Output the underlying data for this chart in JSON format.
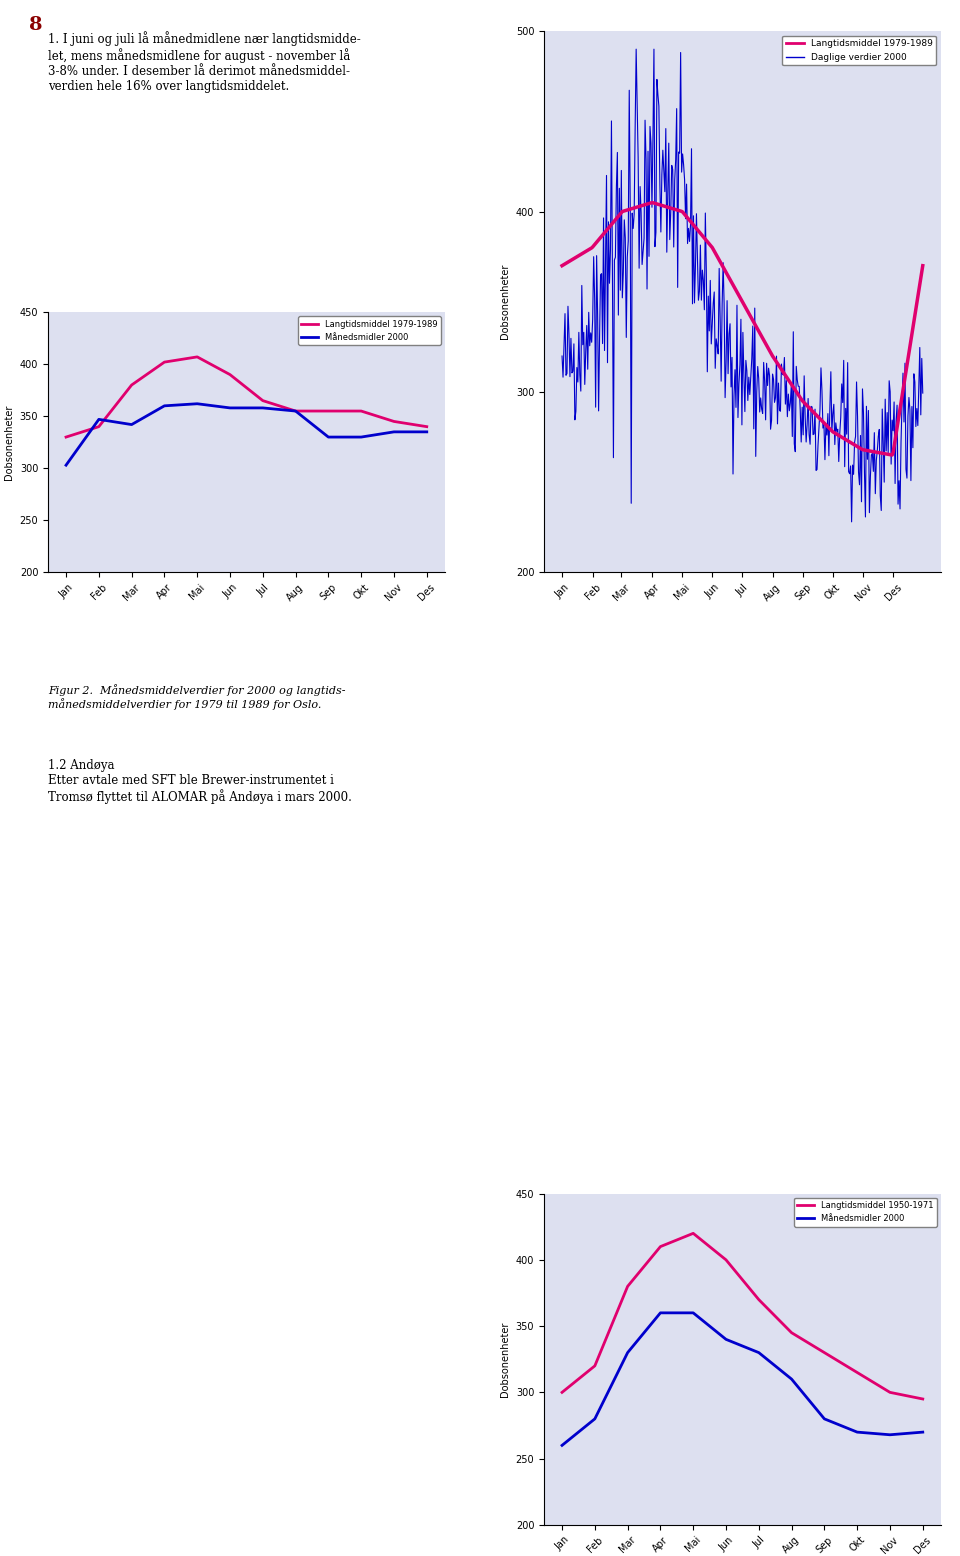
{
  "chart1": {
    "title": "",
    "ylabel": "Dobsonenheter",
    "xlabel": "",
    "bg_color": "#dde0f0",
    "ylim": [
      200,
      450
    ],
    "yticks": [
      200,
      250,
      300,
      350,
      400,
      450
    ],
    "months": [
      "Jan",
      "Feb",
      "Mar",
      "Apr",
      "Mai",
      "Jun",
      "Jul",
      "Aug",
      "Sep",
      "Okt",
      "Nov",
      "Des"
    ],
    "langtid_1979_1989": [
      330,
      340,
      380,
      402,
      407,
      390,
      365,
      355,
      355,
      355,
      345,
      340
    ],
    "maanedsmidler_2000": [
      303,
      347,
      342,
      360,
      362,
      358,
      358,
      355,
      330,
      330,
      335,
      335
    ],
    "langtid_color": "#e0006e",
    "maaned_color": "#0000cc",
    "legend_langtid": "Langtidsmiddel 1979-1989",
    "legend_maaned": "Månedsmidler 2000"
  },
  "chart2": {
    "title": "",
    "ylabel": "Dobsonenheter",
    "xlabel": "",
    "bg_color": "#dde0f0",
    "ylim": [
      200,
      500
    ],
    "yticks": [
      200,
      300,
      400,
      500
    ],
    "langtid_color": "#e0006e",
    "daglig_color": "#0000cc",
    "legend_langtid": "Langtidsmiddel 1979-1989",
    "legend_daglig": "Daglige verdier 2000"
  },
  "chart3": {
    "title": "",
    "ylabel": "Dobsonenheter",
    "xlabel": "",
    "bg_color": "#dde0f0",
    "ylim": [
      200,
      450
    ],
    "yticks": [
      200,
      250,
      300,
      350,
      400,
      450
    ],
    "months": [
      "Jan",
      "Feb",
      "Mar",
      "Apr",
      "Mai",
      "Jun",
      "Jul",
      "Aug",
      "Sep",
      "Okt",
      "Nov",
      "Des"
    ],
    "langtid_1950_1971": [
      300,
      320,
      380,
      410,
      420,
      400,
      370,
      345,
      330,
      315,
      300,
      295
    ],
    "maanedsmidler_2000": [
      260,
      280,
      330,
      360,
      360,
      340,
      330,
      310,
      280,
      270,
      268,
      270
    ],
    "langtid_color": "#e0006e",
    "maaned_color": "#0000cc",
    "legend_langtid": "Langtidsmiddel 1950-1971",
    "legend_maaned": "Månedsmidler 2000"
  },
  "page_bg": "#ffffff",
  "text_color": "#000000"
}
